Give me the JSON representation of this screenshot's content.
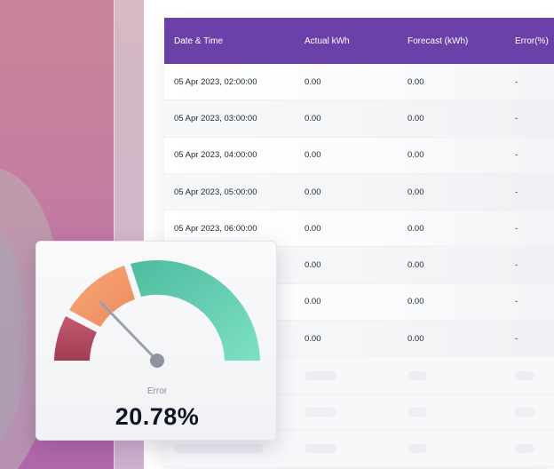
{
  "table": {
    "headers": [
      "Date & Time",
      "Actual kWh",
      "Forecast (kWh)",
      "Error(%)"
    ],
    "rows": [
      [
        "05 Apr 2023, 02:00:00",
        "0.00",
        "0.00",
        "-"
      ],
      [
        "05 Apr 2023, 03:00:00",
        "0.00",
        "0.00",
        "-"
      ],
      [
        "05 Apr 2023, 04:00:00",
        "0.00",
        "0.00",
        "-"
      ],
      [
        "05 Apr 2023, 05:00:00",
        "0.00",
        "0.00",
        "-"
      ],
      [
        "05 Apr 2023, 06:00:00",
        "0.00",
        "0.00",
        "-"
      ],
      [
        "",
        "0.00",
        "0.00",
        "-"
      ],
      [
        "",
        "0.00",
        "0.00",
        "-"
      ],
      [
        "",
        "0.00",
        "0.00",
        "-"
      ]
    ],
    "header_color": "#6a41a8"
  },
  "gauge": {
    "label": "Error",
    "value": "20.78%",
    "segment_colors": [
      "#b84e63",
      "#f49a6b",
      "#5ec9ad"
    ]
  }
}
